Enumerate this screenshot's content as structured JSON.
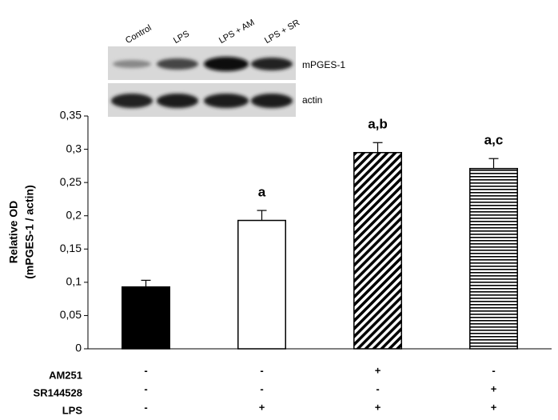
{
  "chart_data": {
    "type": "bar",
    "ylabel": [
      "Relative OD",
      "(mPGES-1 / actin)"
    ],
    "categories": [
      null,
      null,
      null,
      null
    ],
    "values": [
      0.093,
      0.193,
      0.295,
      0.271
    ],
    "errors": [
      0.01,
      0.015,
      0.015,
      0.015
    ],
    "annotations": [
      null,
      "a",
      "a,b",
      "a,c"
    ],
    "fills": [
      "solid",
      "none",
      "diagonal",
      "horizontal"
    ],
    "color": "#000000",
    "ylim": [
      0,
      0.35
    ],
    "yticks": [
      0,
      {
        "value": 0.05,
        "label": "0,05"
      },
      {
        "value": 0.1,
        "label": "0,1"
      },
      {
        "value": 0.15,
        "label": "0,15"
      },
      {
        "value": 0.2,
        "label": "0,2"
      },
      {
        "value": 0.25,
        "label": "0,25"
      },
      {
        "value": 0.3,
        "label": "0,3"
      },
      {
        "value": 0.35,
        "label": "0,35"
      }
    ],
    "grid": false
  },
  "blot": {
    "lanes": [
      "Control",
      "LPS",
      "LPS + AM",
      "LPS + SR"
    ],
    "bands": [
      "mPGES-1",
      "actin"
    ]
  },
  "treatments": [
    {
      "label": "AM251",
      "cells": [
        "-",
        "-",
        "+",
        "-"
      ]
    },
    {
      "label": "SR144528",
      "cells": [
        "-",
        "-",
        "-",
        "+"
      ]
    },
    {
      "label": "LPS",
      "cells": [
        "-",
        "+",
        "+",
        "+"
      ]
    }
  ]
}
